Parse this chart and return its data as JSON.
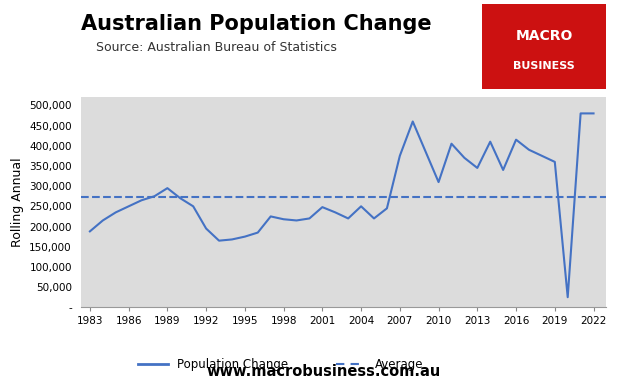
{
  "title": "Australian Population Change",
  "subtitle": "Source: Australian Bureau of Statistics",
  "ylabel": "Rolling Annual",
  "website": "www.macrobusiness.com.au",
  "title_fontsize": 15,
  "subtitle_fontsize": 9,
  "ylabel_fontsize": 9,
  "background_color": "#dcdcdc",
  "line_color": "#4472C4",
  "avg_color": "#4472C4",
  "avg_value": 272000,
  "logo_bg_color": "#CC1111",
  "logo_text1": "MACRO",
  "logo_text2": "BUSINESS",
  "years": [
    1983,
    1984,
    1985,
    1986,
    1987,
    1988,
    1989,
    1990,
    1991,
    1992,
    1993,
    1994,
    1995,
    1996,
    1997,
    1998,
    1999,
    2000,
    2001,
    2002,
    2003,
    2004,
    2005,
    2006,
    2007,
    2008,
    2009,
    2010,
    2011,
    2012,
    2013,
    2014,
    2015,
    2016,
    2017,
    2018,
    2019,
    2020,
    2021,
    2022
  ],
  "values": [
    188000,
    215000,
    235000,
    250000,
    265000,
    275000,
    295000,
    270000,
    250000,
    195000,
    165000,
    168000,
    175000,
    185000,
    225000,
    218000,
    215000,
    220000,
    248000,
    235000,
    220000,
    250000,
    220000,
    245000,
    375000,
    460000,
    385000,
    310000,
    405000,
    370000,
    345000,
    410000,
    340000,
    415000,
    390000,
    375000,
    360000,
    25000,
    480000,
    480000
  ],
  "ylim": [
    0,
    520000
  ],
  "yticks": [
    0,
    50000,
    100000,
    150000,
    200000,
    250000,
    300000,
    350000,
    400000,
    450000,
    500000
  ],
  "xticks": [
    1983,
    1986,
    1989,
    1992,
    1995,
    1998,
    2001,
    2004,
    2007,
    2010,
    2013,
    2016,
    2019,
    2022
  ],
  "xlim": [
    1982.3,
    2023.0
  ]
}
